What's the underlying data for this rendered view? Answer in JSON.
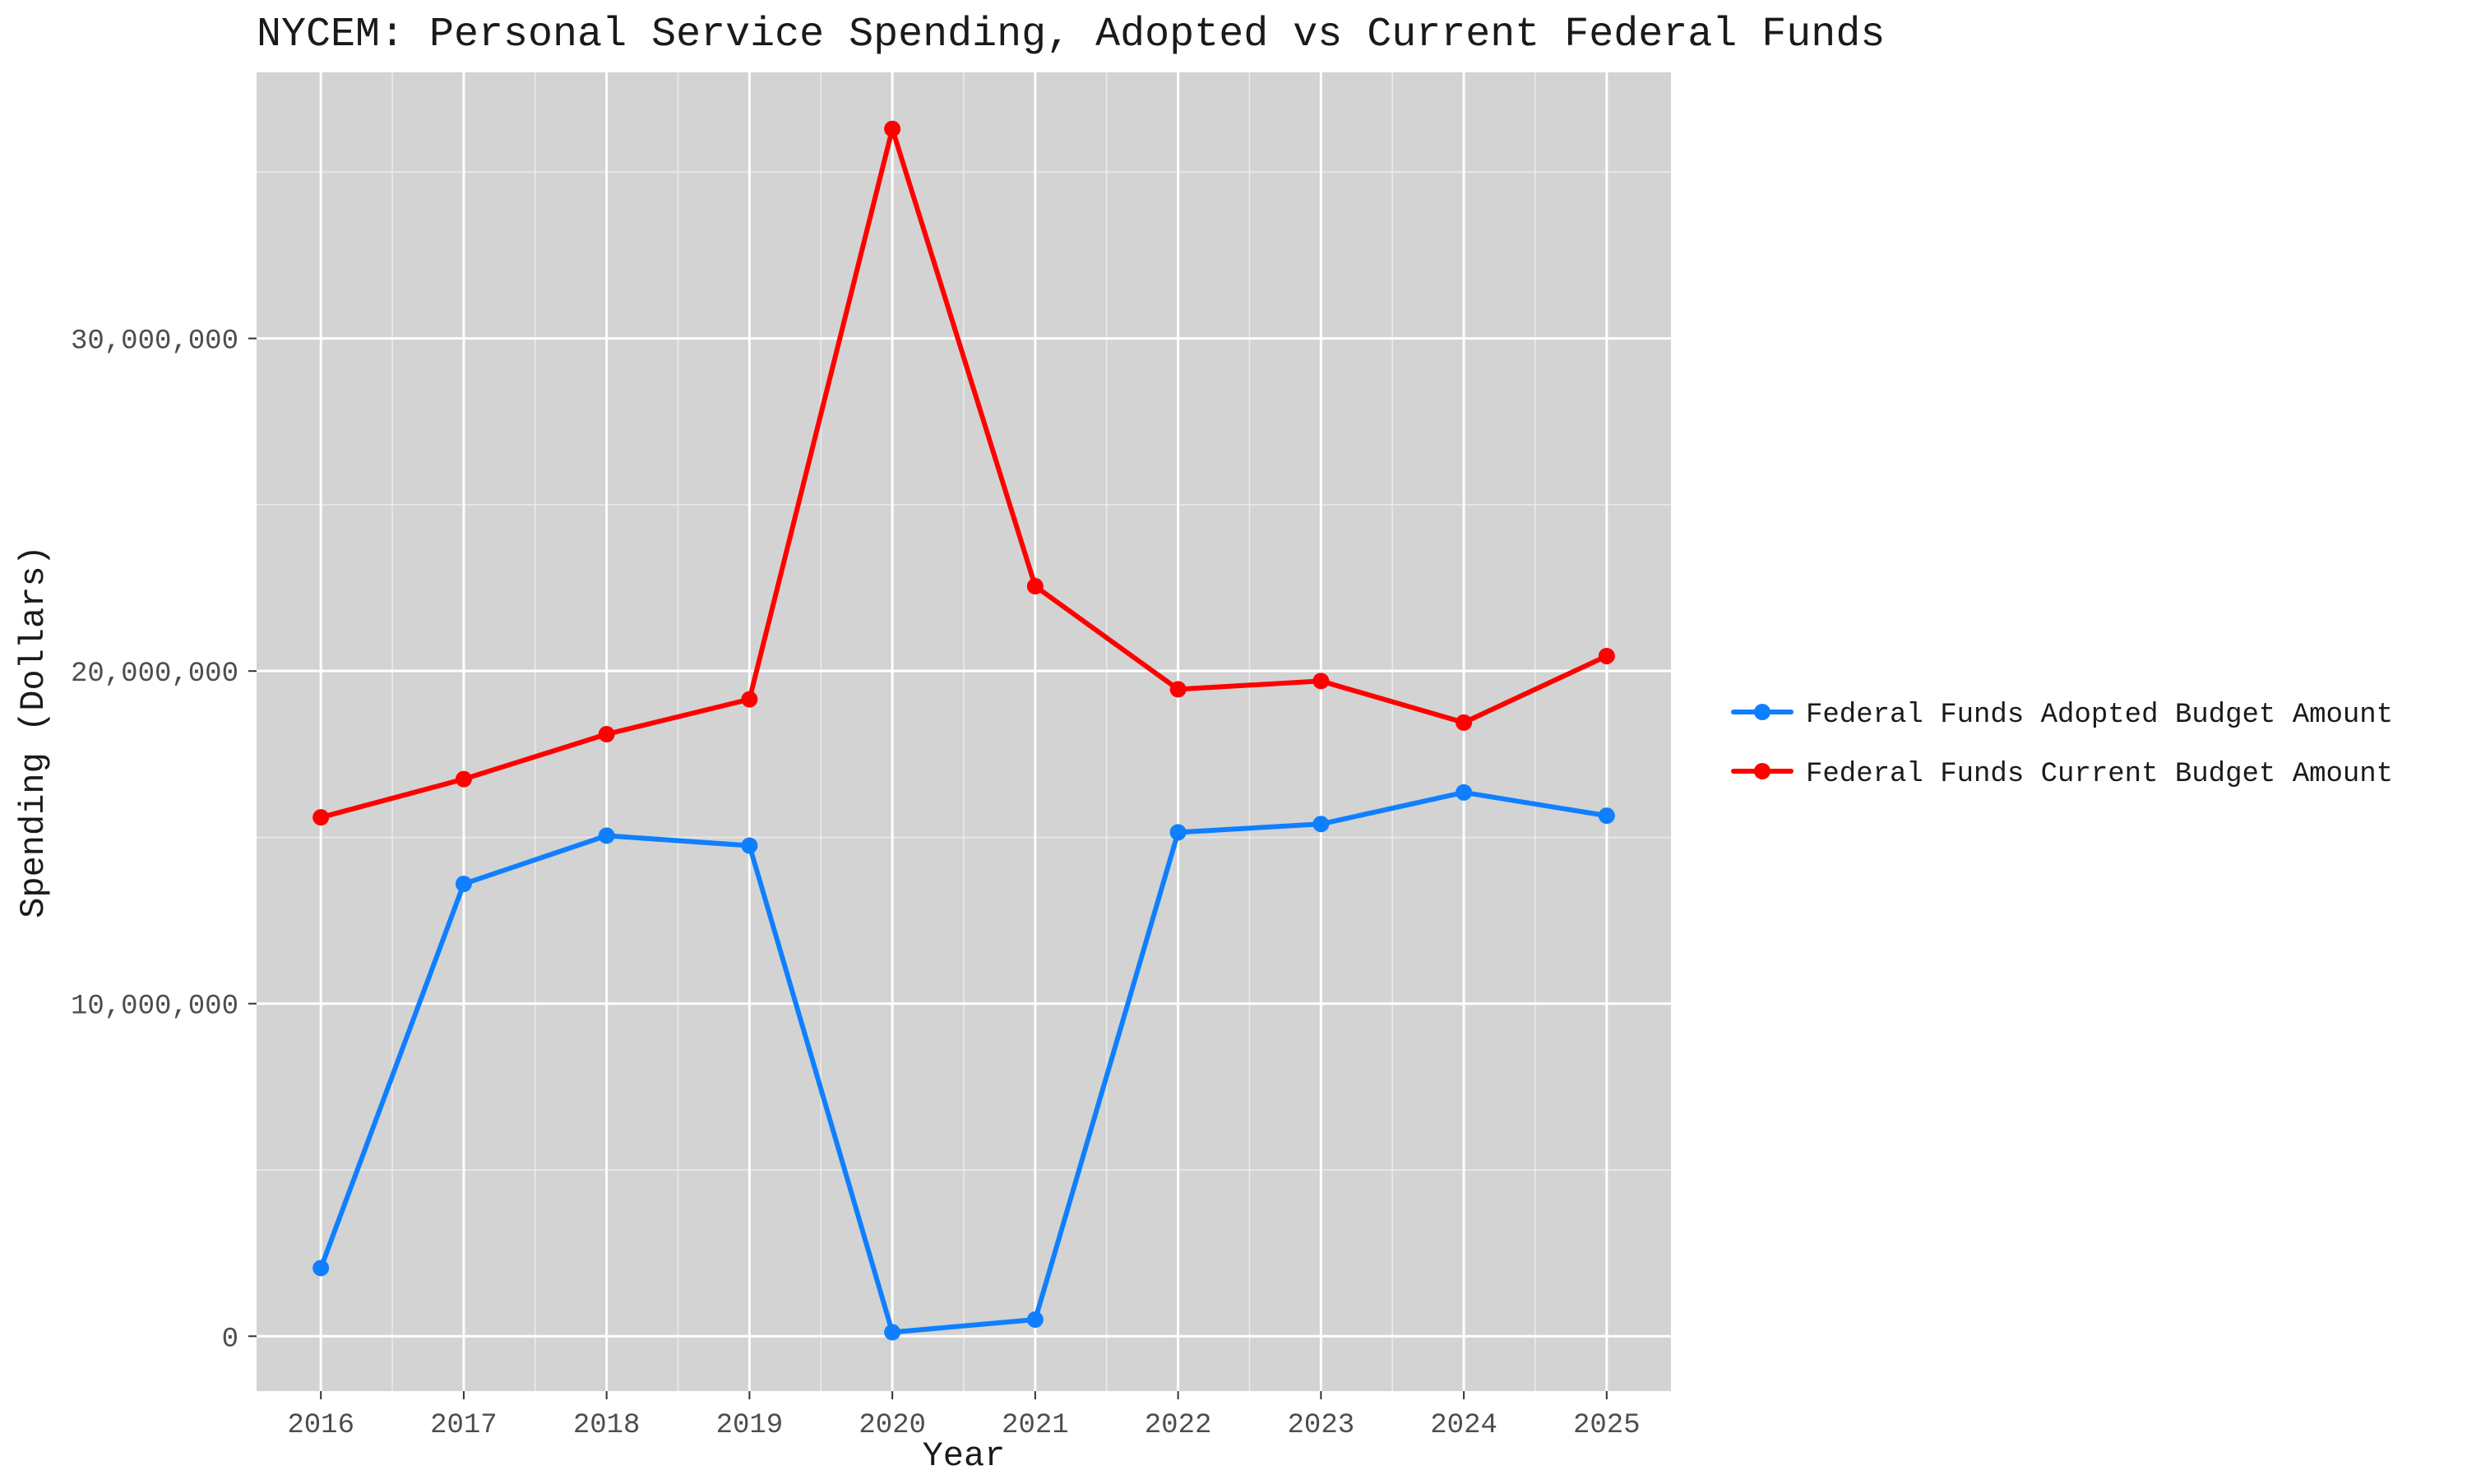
{
  "chart_data": {
    "type": "line",
    "title": "NYCEM: Personal Service Spending, Adopted vs Current Federal Funds",
    "xlabel": "Year",
    "ylabel": "Spending (Dollars)",
    "x": [
      2016,
      2017,
      2018,
      2019,
      2020,
      2021,
      2022,
      2023,
      2024,
      2025
    ],
    "x_tick_labels": [
      "2016",
      "2017",
      "2018",
      "2019",
      "2020",
      "2021",
      "2022",
      "2023",
      "2024",
      "2025"
    ],
    "y_ticks": [
      0,
      10000000,
      20000000,
      30000000
    ],
    "y_tick_labels": [
      "0",
      "10,000,000",
      "20,000,000",
      "30,000,000"
    ],
    "ylim": [
      -1650000,
      38000000
    ],
    "grid": true,
    "legend_position": "right",
    "series": [
      {
        "name": "Federal Funds Adopted Budget Amount",
        "color": "#0f7fff",
        "values": [
          2050000,
          13600000,
          15050000,
          14750000,
          120000,
          500000,
          15150000,
          15400000,
          16350000,
          15650000
        ]
      },
      {
        "name": "Federal Funds Current Budget Amount",
        "color": "#ff0000",
        "values": [
          15600000,
          16750000,
          18100000,
          19150000,
          36300000,
          22550000,
          19450000,
          19700000,
          18450000,
          20450000
        ]
      }
    ]
  }
}
